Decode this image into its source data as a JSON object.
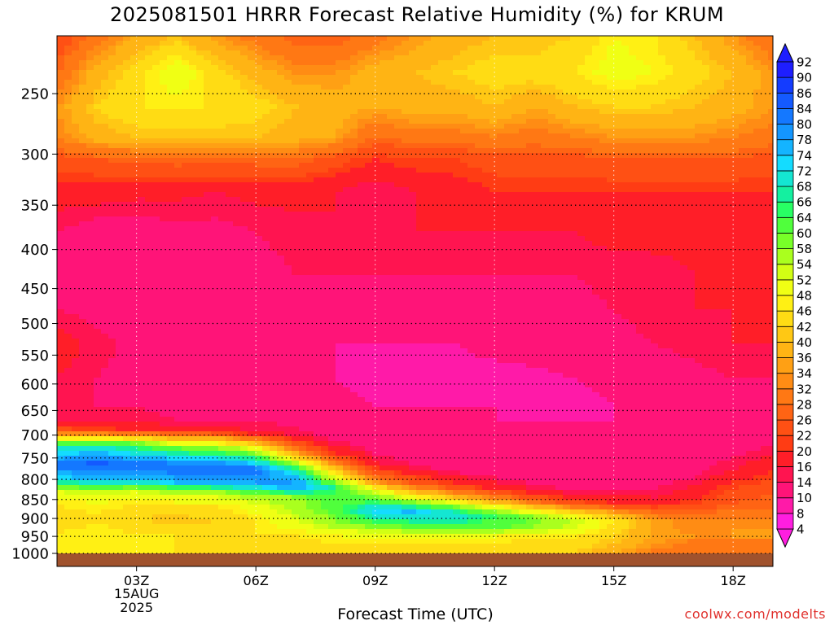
{
  "title": "2025081501 HRRR Forecast Relative Humidity (%) for KRUM",
  "watermark": "coolwx.com/modelts",
  "colors": {
    "ground": "#a0522d"
  },
  "chart_data": {
    "type": "heatmap",
    "title": "2025081501 HRRR Forecast Relative Humidity (%) for KRUM",
    "xlabel": "Forecast Time (UTC)",
    "ylabel": "",
    "x_ticks": [
      "03Z",
      "06Z",
      "09Z",
      "12Z",
      "15Z",
      "18Z"
    ],
    "x_tick_hours": [
      3,
      6,
      9,
      12,
      15,
      18
    ],
    "x_date_label": [
      "15AUG",
      "2025"
    ],
    "xlim": [
      1,
      19
    ],
    "y_ticks": [
      250,
      300,
      350,
      400,
      450,
      500,
      550,
      600,
      650,
      700,
      750,
      800,
      850,
      900,
      950,
      1000
    ],
    "y_axis": "pressure (hPa), log scale, inverted",
    "ylim": [
      1040,
      210
    ],
    "grid": true,
    "colorbar": {
      "levels": [
        4,
        8,
        10,
        14,
        16,
        20,
        22,
        26,
        28,
        32,
        34,
        36,
        40,
        42,
        46,
        48,
        52,
        54,
        58,
        60,
        64,
        66,
        68,
        72,
        74,
        78,
        80,
        84,
        86,
        90,
        92
      ],
      "colors": [
        "#ff1ee0",
        "#ff1aa8",
        "#ff1478",
        "#ff1450",
        "#ff1e28",
        "#ff3c14",
        "#ff5014",
        "#ff6414",
        "#ff7814",
        "#ff8c14",
        "#ffa014",
        "#ffb414",
        "#ffc814",
        "#ffdc14",
        "#fff014",
        "#f0ff14",
        "#d2ff14",
        "#aaff1e",
        "#78ff28",
        "#50ff3c",
        "#28ff64",
        "#14f0a0",
        "#14e6d2",
        "#14dcff",
        "#14b4ff",
        "#1496ff",
        "#1478ff",
        "#145aff",
        "#143cff",
        "#1e1eff"
      ]
    },
    "rh_profiles": [
      {
        "hour": 1,
        "p": [
          210,
          235,
          260,
          285,
          305,
          335,
          380,
          430,
          480,
          530,
          590,
          640,
          670,
          690,
          720,
          765,
          800,
          830,
          860,
          900,
          945,
          975,
          1000
        ],
        "rh": [
          22,
          28,
          34,
          32,
          24,
          18,
          14,
          12,
          14,
          18,
          16,
          15,
          16,
          24,
          64,
          84,
          72,
          52,
          46,
          44,
          46,
          46,
          46
        ]
      },
      {
        "hour": 2,
        "p": [
          210,
          235,
          260,
          285,
          305,
          335,
          380,
          430,
          480,
          530,
          590,
          640,
          670,
          690,
          720,
          765,
          800,
          830,
          860,
          900,
          945,
          975,
          1000
        ],
        "rh": [
          30,
          38,
          42,
          38,
          26,
          18,
          12,
          11,
          13,
          15,
          14,
          14,
          15,
          22,
          66,
          86,
          74,
          54,
          48,
          45,
          48,
          47,
          46
        ]
      },
      {
        "hour": 3,
        "p": [
          210,
          235,
          260,
          285,
          305,
          335,
          380,
          430,
          480,
          530,
          590,
          640,
          670,
          690,
          720,
          765,
          800,
          830,
          860,
          900,
          945,
          975,
          1000
        ],
        "rh": [
          36,
          44,
          46,
          40,
          27,
          17,
          12,
          11,
          12,
          13,
          13,
          14,
          15,
          20,
          62,
          84,
          74,
          52,
          46,
          42,
          46,
          46,
          46
        ]
      },
      {
        "hour": 4,
        "p": [
          210,
          235,
          260,
          285,
          305,
          335,
          380,
          430,
          480,
          530,
          590,
          640,
          670,
          690,
          725,
          770,
          805,
          835,
          865,
          905,
          945,
          975,
          1000
        ],
        "rh": [
          40,
          52,
          46,
          40,
          28,
          17,
          13,
          12,
          12,
          13,
          12,
          13,
          14,
          18,
          58,
          84,
          76,
          54,
          46,
          40,
          46,
          46,
          46
        ]
      },
      {
        "hour": 5,
        "p": [
          210,
          235,
          260,
          285,
          305,
          335,
          380,
          430,
          480,
          530,
          590,
          640,
          670,
          690,
          725,
          770,
          805,
          835,
          865,
          905,
          945,
          975,
          1000
        ],
        "rh": [
          34,
          44,
          46,
          40,
          28,
          16,
          13,
          12,
          12,
          12,
          12,
          13,
          14,
          18,
          56,
          84,
          78,
          54,
          46,
          42,
          46,
          44,
          44
        ]
      },
      {
        "hour": 6,
        "p": [
          210,
          235,
          260,
          285,
          305,
          335,
          380,
          430,
          480,
          530,
          590,
          640,
          670,
          695,
          730,
          775,
          810,
          840,
          870,
          905,
          945,
          975,
          1000
        ],
        "rh": [
          30,
          38,
          44,
          40,
          28,
          17,
          14,
          13,
          12,
          12,
          12,
          12,
          14,
          16,
          52,
          82,
          78,
          56,
          50,
          46,
          46,
          44,
          42
        ]
      },
      {
        "hour": 7,
        "p": [
          210,
          235,
          260,
          285,
          305,
          335,
          380,
          430,
          480,
          530,
          590,
          640,
          670,
          700,
          735,
          780,
          815,
          845,
          870,
          905,
          945,
          975,
          1000
        ],
        "rh": [
          26,
          34,
          40,
          38,
          28,
          17,
          15,
          14,
          12,
          11,
          11,
          12,
          13,
          15,
          32,
          70,
          80,
          58,
          56,
          52,
          46,
          44,
          42
        ]
      },
      {
        "hour": 8,
        "p": [
          210,
          235,
          260,
          285,
          305,
          335,
          380,
          430,
          480,
          530,
          590,
          640,
          670,
          710,
          745,
          790,
          820,
          850,
          875,
          910,
          945,
          975,
          1000
        ],
        "rh": [
          26,
          34,
          38,
          36,
          24,
          16,
          16,
          14,
          12,
          10,
          10,
          11,
          12,
          13,
          22,
          48,
          66,
          62,
          62,
          58,
          48,
          46,
          44
        ]
      },
      {
        "hour": 9,
        "p": [
          210,
          235,
          260,
          285,
          305,
          335,
          380,
          430,
          480,
          530,
          590,
          640,
          670,
          720,
          760,
          800,
          830,
          860,
          880,
          910,
          945,
          975,
          1000
        ],
        "rh": [
          30,
          38,
          36,
          28,
          20,
          14,
          16,
          14,
          11,
          10,
          9,
          10,
          11,
          12,
          16,
          30,
          52,
          66,
          74,
          64,
          50,
          46,
          44
        ]
      },
      {
        "hour": 10,
        "p": [
          210,
          235,
          260,
          285,
          305,
          335,
          380,
          430,
          480,
          530,
          590,
          640,
          670,
          730,
          770,
          810,
          840,
          865,
          885,
          915,
          945,
          975,
          1000
        ],
        "rh": [
          34,
          40,
          38,
          30,
          22,
          16,
          16,
          14,
          11,
          10,
          9,
          10,
          11,
          12,
          14,
          26,
          46,
          64,
          76,
          64,
          50,
          46,
          44
        ]
      },
      {
        "hour": 11,
        "p": [
          210,
          235,
          260,
          285,
          305,
          335,
          380,
          430,
          480,
          530,
          590,
          640,
          670,
          740,
          780,
          815,
          845,
          870,
          890,
          915,
          945,
          975,
          1000
        ],
        "rh": [
          38,
          42,
          38,
          30,
          22,
          18,
          16,
          14,
          11,
          10,
          9,
          10,
          10,
          11,
          13,
          22,
          40,
          60,
          72,
          66,
          50,
          46,
          44
        ]
      },
      {
        "hour": 12,
        "p": [
          210,
          235,
          260,
          285,
          305,
          335,
          380,
          430,
          480,
          530,
          590,
          640,
          670,
          745,
          785,
          820,
          850,
          875,
          895,
          920,
          950,
          975,
          1000
        ],
        "rh": [
          40,
          44,
          40,
          32,
          24,
          20,
          16,
          14,
          12,
          11,
          9,
          10,
          10,
          10,
          12,
          18,
          34,
          54,
          64,
          62,
          48,
          46,
          44
        ]
      },
      {
        "hour": 13,
        "p": [
          210,
          235,
          260,
          285,
          305,
          335,
          380,
          430,
          480,
          530,
          590,
          640,
          670,
          750,
          790,
          825,
          855,
          880,
          900,
          925,
          950,
          975,
          1000
        ],
        "rh": [
          40,
          44,
          36,
          30,
          24,
          20,
          16,
          14,
          12,
          12,
          9,
          9,
          10,
          10,
          11,
          16,
          28,
          48,
          60,
          58,
          46,
          44,
          42
        ]
      },
      {
        "hour": 14,
        "p": [
          210,
          235,
          260,
          285,
          305,
          335,
          380,
          430,
          480,
          530,
          590,
          640,
          670,
          750,
          795,
          830,
          860,
          885,
          905,
          930,
          950,
          975,
          1000
        ],
        "rh": [
          42,
          46,
          40,
          32,
          24,
          20,
          16,
          14,
          13,
          12,
          10,
          9,
          10,
          10,
          11,
          14,
          24,
          44,
          54,
          52,
          46,
          44,
          42
        ]
      },
      {
        "hour": 15,
        "p": [
          210,
          235,
          260,
          285,
          305,
          335,
          380,
          430,
          480,
          530,
          590,
          640,
          670,
          755,
          795,
          830,
          860,
          885,
          905,
          930,
          950,
          975,
          1000
        ],
        "rh": [
          48,
          50,
          42,
          34,
          26,
          20,
          17,
          15,
          14,
          13,
          11,
          10,
          10,
          10,
          11,
          14,
          20,
          36,
          46,
          44,
          42,
          40,
          36
        ]
      },
      {
        "hour": 16,
        "p": [
          210,
          235,
          260,
          285,
          305,
          335,
          380,
          430,
          480,
          530,
          590,
          640,
          670,
          755,
          795,
          830,
          860,
          885,
          905,
          930,
          950,
          975,
          1000
        ],
        "rh": [
          46,
          48,
          42,
          34,
          26,
          20,
          17,
          15,
          15,
          14,
          12,
          11,
          11,
          11,
          12,
          14,
          18,
          28,
          36,
          36,
          36,
          34,
          30
        ]
      },
      {
        "hour": 17,
        "p": [
          210,
          235,
          260,
          285,
          305,
          335,
          380,
          430,
          480,
          530,
          590,
          640,
          670,
          745,
          785,
          815,
          850,
          880,
          905,
          930,
          950,
          975,
          1000
        ],
        "rh": [
          40,
          44,
          40,
          34,
          26,
          20,
          17,
          16,
          16,
          15,
          13,
          12,
          12,
          12,
          13,
          16,
          20,
          26,
          32,
          32,
          34,
          30,
          28
        ]
      },
      {
        "hour": 18,
        "p": [
          210,
          235,
          260,
          285,
          305,
          335,
          380,
          430,
          480,
          530,
          590,
          640,
          670,
          735,
          775,
          805,
          840,
          875,
          900,
          930,
          950,
          975,
          1000
        ],
        "rh": [
          34,
          40,
          38,
          32,
          26,
          20,
          16,
          16,
          16,
          16,
          14,
          13,
          13,
          13,
          16,
          20,
          24,
          28,
          32,
          34,
          34,
          30,
          28
        ]
      },
      {
        "hour": 19,
        "p": [
          210,
          235,
          260,
          285,
          305,
          335,
          380,
          430,
          480,
          530,
          590,
          640,
          670,
          725,
          765,
          800,
          835,
          870,
          900,
          930,
          950,
          975,
          1000
        ],
        "rh": [
          28,
          34,
          34,
          30,
          24,
          20,
          16,
          16,
          16,
          16,
          14,
          13,
          14,
          14,
          18,
          22,
          26,
          28,
          32,
          34,
          34,
          30,
          28
        ]
      }
    ]
  }
}
